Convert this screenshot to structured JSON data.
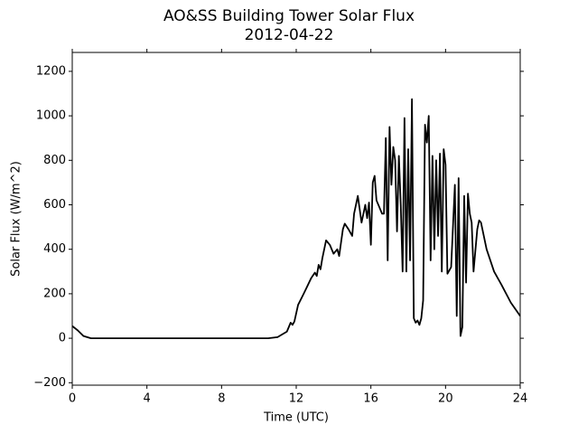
{
  "chart_data": {
    "type": "line",
    "title": "AO&SS Building Tower Solar Flux",
    "subtitle": "2012-04-22",
    "x_label": "Time (UTC)",
    "y_label": "Solar Flux (W/m^2)",
    "xlim": [
      0,
      24
    ],
    "xticks": [
      0,
      4,
      8,
      12,
      16,
      20,
      24
    ],
    "ylim": [
      -211,
      1285
    ],
    "yticks": [
      {
        "value": -200,
        "label": "−200"
      },
      0,
      200,
      400,
      600,
      800,
      1000,
      1200
    ],
    "grid": false,
    "series": [
      {
        "color": "#000000",
        "x": [
          0,
          0.3,
          0.6,
          1,
          10.5,
          11,
          11.5,
          11.7,
          11.8,
          11.9,
          12.1,
          12.4,
          12.8,
          13.0,
          13.1,
          13.2,
          13.3,
          13.4,
          13.6,
          13.8,
          14.0,
          14.2,
          14.3,
          14.5,
          14.6,
          14.8,
          15.0,
          15.1,
          15.2,
          15.3,
          15.4,
          15.5,
          15.7,
          15.8,
          15.9,
          16.0,
          16.1,
          16.2,
          16.3,
          16.5,
          16.6,
          16.7,
          16.8,
          16.9,
          17.0,
          17.1,
          17.2,
          17.3,
          17.4,
          17.5,
          17.6,
          17.7,
          17.8,
          17.9,
          18.0,
          18.1,
          18.2,
          18.3,
          18.4,
          18.5,
          18.6,
          18.7,
          18.8,
          18.9,
          19.0,
          19.1,
          19.2,
          19.3,
          19.4,
          19.5,
          19.6,
          19.7,
          19.8,
          19.9,
          20.0,
          20.1,
          20.3,
          20.5,
          20.6,
          20.7,
          20.8,
          20.9,
          21.0,
          21.1,
          21.2,
          21.3,
          21.4,
          21.5,
          21.7,
          21.8,
          21.9,
          22.2,
          22.6,
          23.0,
          23.5,
          24
        ],
        "values": [
          55,
          35,
          10,
          0,
          0,
          5,
          30,
          70,
          60,
          75,
          150,
          200,
          270,
          295,
          280,
          330,
          310,
          360,
          440,
          420,
          380,
          400,
          370,
          490,
          515,
          490,
          460,
          560,
          600,
          640,
          580,
          520,
          600,
          540,
          610,
          420,
          700,
          730,
          620,
          580,
          560,
          560,
          900,
          350,
          950,
          690,
          860,
          800,
          480,
          820,
          600,
          300,
          990,
          300,
          850,
          350,
          1075,
          90,
          70,
          80,
          60,
          90,
          170,
          960,
          880,
          1000,
          350,
          820,
          400,
          800,
          460,
          830,
          300,
          850,
          780,
          290,
          320,
          690,
          100,
          720,
          10,
          50,
          640,
          250,
          650,
          560,
          520,
          300,
          490,
          530,
          520,
          400,
          300,
          240,
          160,
          100
        ]
      }
    ]
  }
}
